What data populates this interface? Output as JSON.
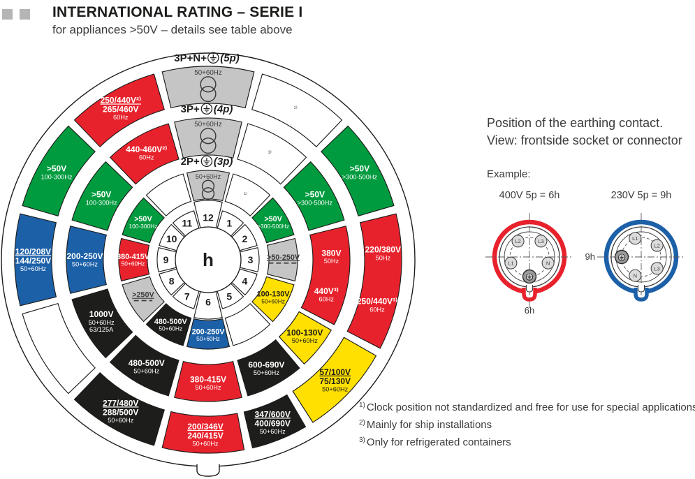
{
  "header": {
    "title": "INTERNATIONAL RATING – SERIE I",
    "subtitle": "for appliances >50V – details see table above"
  },
  "colors": {
    "red": "#E8222C",
    "green": "#009B3E",
    "blue": "#1C60A8",
    "black": "#1D1D1B",
    "gray": "#C5C5C5",
    "yellow": "#FFE000",
    "white": "#FFFFFF",
    "dark": "#1D1D1B",
    "text_gray": "#3C3C3B",
    "square_gray": "#B5B5B5"
  },
  "wheel": {
    "center_label": "h",
    "clock_numbers": [
      "1",
      "2",
      "3",
      "4",
      "5",
      "6",
      "7",
      "8",
      "9",
      "10",
      "11",
      "12"
    ],
    "rings": [
      {
        "id": "3p",
        "label_prefix": "2P+",
        "label_suffix": "(3p)",
        "segments": [
          {
            "s": 11.5,
            "e": 12.5,
            "c": "gray",
            "tr": true,
            "ls": [
              {
                "at": 12,
                "ln": [
                  {
                    "t": "50+60Hz",
                    "sm": true
                  }
                ]
              }
            ]
          },
          {
            "s": 12.5,
            "e": 13.5,
            "c": "white",
            "ls": [
              {
                "at": 13,
                "ln": [
                  {
                    "t": "¹⁾",
                    "sm": true
                  }
                ]
              }
            ]
          },
          {
            "s": 1.5,
            "e": 2.5,
            "c": "green",
            "ls": [
              {
                "at": 2,
                "ln": [
                  {
                    "t": ">50V"
                  },
                  {
                    "t": ">300-500Hz",
                    "sm": true
                  }
                ]
              }
            ]
          },
          {
            "s": 2.5,
            "e": 3.5,
            "c": "gray",
            "ls": [
              {
                "at": 3,
                "ln": [
                  {
                    "t": ">50-250V",
                    "u": true,
                    "dc": true
                  }
                ]
              }
            ]
          },
          {
            "s": 3.5,
            "e": 4.5,
            "c": "yellow",
            "ls": [
              {
                "at": 4,
                "ln": [
                  {
                    "t": "100-130V"
                  },
                  {
                    "t": "50+60Hz",
                    "sm": true
                  }
                ]
              }
            ]
          },
          {
            "s": 4.5,
            "e": 5.5,
            "c": "white"
          },
          {
            "s": 5.5,
            "e": 6.5,
            "c": "blue",
            "ls": [
              {
                "at": 6,
                "ln": [
                  {
                    "t": "200-250V"
                  },
                  {
                    "t": "50+60Hz",
                    "sm": true
                  }
                ]
              }
            ]
          },
          {
            "s": 6.5,
            "e": 7.5,
            "c": "black",
            "ls": [
              {
                "at": 7,
                "ln": [
                  {
                    "t": "480-500V"
                  },
                  {
                    "t": "50+60Hz",
                    "sm": true
                  }
                ]
              }
            ]
          },
          {
            "s": 7.5,
            "e": 8.5,
            "c": "gray",
            "ls": [
              {
                "at": 8,
                "ln": [
                  {
                    "t": ">250V",
                    "u": true,
                    "dc": true
                  }
                ]
              }
            ]
          },
          {
            "s": 8.5,
            "e": 9.5,
            "c": "red",
            "ls": [
              {
                "at": 9,
                "ln": [
                  {
                    "t": "380-415V"
                  },
                  {
                    "t": "50+60Hz",
                    "sm": true
                  }
                ]
              }
            ]
          },
          {
            "s": 9.5,
            "e": 10.5,
            "c": "green",
            "ls": [
              {
                "at": 10,
                "ln": [
                  {
                    "t": ">50V"
                  },
                  {
                    "t": "100-300Hz",
                    "sm": true
                  }
                ]
              }
            ]
          },
          {
            "s": 10.5,
            "e": 11.5,
            "c": "white"
          }
        ]
      },
      {
        "id": "4p",
        "label_prefix": "3P+",
        "label_suffix": "(4p)",
        "segments": [
          {
            "s": 11.5,
            "e": 12.5,
            "c": "gray",
            "tr": true,
            "ls": [
              {
                "at": 12,
                "ln": [
                  {
                    "t": "50+60Hz",
                    "sm": true
                  }
                ]
              }
            ]
          },
          {
            "s": 12.5,
            "e": 13.5,
            "c": "white",
            "ls": [
              {
                "at": 13,
                "ln": [
                  {
                    "t": "¹⁾",
                    "sm": true
                  }
                ]
              }
            ]
          },
          {
            "s": 1.5,
            "e": 2.5,
            "c": "green",
            "ls": [
              {
                "at": 2,
                "ln": [
                  {
                    "t": ">50V"
                  },
                  {
                    "t": ">300-500Hz",
                    "sm": true
                  }
                ]
              }
            ]
          },
          {
            "s": 2.5,
            "e": 3.95,
            "c": "red",
            "ls": [
              {
                "at": 2.95,
                "ln": [
                  {
                    "t": "380V"
                  },
                  {
                    "t": "50Hz",
                    "sm": true
                  }
                ]
              },
              {
                "at": 3.55,
                "ln": [
                  {
                    "t": "440V³⁾"
                  },
                  {
                    "t": "60Hz",
                    "sm": true
                  }
                ]
              }
            ]
          },
          {
            "s": 3.95,
            "e": 4.62,
            "c": "yellow",
            "ls": [
              {
                "at": 4.28,
                "ln": [
                  {
                    "t": "100-130V"
                  },
                  {
                    "t": "50+60Hz",
                    "sm": true
                  }
                ]
              }
            ]
          },
          {
            "s": 4.62,
            "e": 5.5,
            "c": "black",
            "ls": [
              {
                "at": 5.06,
                "ln": [
                  {
                    "t": "600-690V"
                  },
                  {
                    "t": "50+60Hz",
                    "sm": true
                  }
                ]
              }
            ]
          },
          {
            "s": 5.5,
            "e": 6.5,
            "c": "red",
            "ls": [
              {
                "at": 6,
                "ln": [
                  {
                    "t": "380-415V"
                  },
                  {
                    "t": "50+60Hz",
                    "sm": true
                  }
                ]
              }
            ]
          },
          {
            "s": 6.5,
            "e": 7.5,
            "c": "black",
            "ls": [
              {
                "at": 7,
                "ln": [
                  {
                    "t": "480-500V"
                  },
                  {
                    "t": "50+60Hz",
                    "sm": true
                  }
                ]
              }
            ]
          },
          {
            "s": 7.5,
            "e": 8.5,
            "c": "black",
            "ls": [
              {
                "at": 8,
                "ln": [
                  {
                    "t": "1000V"
                  },
                  {
                    "t": "50+60Hz",
                    "sm": true
                  },
                  {
                    "t": "63/125A",
                    "sm": true
                  }
                ]
              }
            ]
          },
          {
            "s": 8.5,
            "e": 9.5,
            "c": "blue",
            "ls": [
              {
                "at": 9,
                "ln": [
                  {
                    "t": "200-250V"
                  },
                  {
                    "t": "50+60Hz",
                    "sm": true
                  }
                ]
              }
            ]
          },
          {
            "s": 9.5,
            "e": 10.5,
            "c": "green",
            "ls": [
              {
                "at": 10,
                "ln": [
                  {
                    "t": ">50V"
                  },
                  {
                    "t": "100-300Hz",
                    "sm": true
                  }
                ]
              }
            ]
          },
          {
            "s": 10.5,
            "e": 11.5,
            "c": "red",
            "ls": [
              {
                "at": 11,
                "ln": [
                  {
                    "t": "440-460V²⁾"
                  },
                  {
                    "t": "60Hz",
                    "sm": true
                  }
                ]
              }
            ]
          }
        ]
      },
      {
        "id": "5p",
        "label_prefix": "3P+N+",
        "label_suffix": "(5p)",
        "segments": [
          {
            "s": 11.5,
            "e": 12.5,
            "c": "gray",
            "tr": true,
            "ls": [
              {
                "at": 12,
                "ln": [
                  {
                    "t": "50+60Hz",
                    "sm": true
                  }
                ]
              }
            ]
          },
          {
            "s": 12.5,
            "e": 13.5,
            "c": "white",
            "ls": [
              {
                "at": 13,
                "ln": [
                  {
                    "t": "¹⁾",
                    "sm": true
                  }
                ]
              }
            ]
          },
          {
            "s": 1.5,
            "e": 2.5,
            "c": "green",
            "ls": [
              {
                "at": 2,
                "ln": [
                  {
                    "t": ">50V"
                  },
                  {
                    "t": ">300-500Hz",
                    "sm": true
                  }
                ]
              }
            ]
          },
          {
            "s": 2.5,
            "e": 3.95,
            "c": "red",
            "ls": [
              {
                "at": 2.93,
                "ln": [
                  {
                    "t": "220/380V"
                  },
                  {
                    "t": "50Hz",
                    "sm": true
                  }
                ]
              },
              {
                "at": 3.5,
                "ln": [
                  {
                    "t": "250/440V³⁾"
                  },
                  {
                    "t": "60Hz",
                    "sm": true
                  }
                ]
              }
            ]
          },
          {
            "s": 3.95,
            "e": 4.95,
            "c": "yellow",
            "ls": [
              {
                "at": 4.45,
                "ln": [
                  {
                    "t": "57/100V",
                    "u": true
                  },
                  {
                    "t": "75/130V"
                  },
                  {
                    "t": "50+60Hz",
                    "sm": true
                  }
                ]
              }
            ]
          },
          {
            "s": 4.95,
            "e": 5.6,
            "c": "black",
            "ls": [
              {
                "at": 5.28,
                "ln": [
                  {
                    "t": "347/600V",
                    "u": true
                  },
                  {
                    "t": "400/690V"
                  },
                  {
                    "t": "50+60Hz",
                    "sm": true
                  }
                ]
              }
            ]
          },
          {
            "s": 5.6,
            "e": 6.5,
            "c": "red",
            "ls": [
              {
                "at": 6.03,
                "ln": [
                  {
                    "t": "200/346V",
                    "u": true
                  },
                  {
                    "t": "240/415V"
                  },
                  {
                    "t": "50+60Hz",
                    "sm": true
                  }
                ]
              }
            ]
          },
          {
            "s": 6.5,
            "e": 7.5,
            "c": "black",
            "ls": [
              {
                "at": 7,
                "ln": [
                  {
                    "t": "277/480V",
                    "u": true
                  },
                  {
                    "t": "288/500V"
                  },
                  {
                    "t": "50+60Hz",
                    "sm": true
                  }
                ]
              }
            ]
          },
          {
            "s": 7.5,
            "e": 8.5,
            "c": "white"
          },
          {
            "s": 8.5,
            "e": 9.5,
            "c": "blue",
            "ls": [
              {
                "at": 9,
                "ln": [
                  {
                    "t": "120/208V",
                    "u": true
                  },
                  {
                    "t": "144/250V"
                  },
                  {
                    "t": "50+60Hz",
                    "sm": true
                  }
                ]
              }
            ]
          },
          {
            "s": 9.5,
            "e": 10.5,
            "c": "green",
            "ls": [
              {
                "at": 10,
                "ln": [
                  {
                    "t": ">50V"
                  },
                  {
                    "t": "100-300Hz",
                    "sm": true
                  }
                ]
              }
            ]
          },
          {
            "s": 10.5,
            "e": 11.5,
            "c": "red",
            "ls": [
              {
                "at": 11,
                "ln": [
                  {
                    "t": "250/440V²⁾",
                    "u": true
                  },
                  {
                    "t": "265/460V"
                  },
                  {
                    "t": "60Hz",
                    "sm": true
                  }
                ]
              }
            ]
          }
        ]
      }
    ]
  },
  "side_panel": {
    "heading_line1": "Position of the earthing contact.",
    "heading_line2": "View: frontside socket or connector",
    "example_label": "Example:",
    "connectors": [
      {
        "title": "400V 5p = 6h",
        "color": "#E8222C",
        "position_label": "6h",
        "label_side": "bottom",
        "earth_at": 6,
        "pins": [
          {
            "label": "L1",
            "at": 8.4
          },
          {
            "label": "L2",
            "at": 10.8
          },
          {
            "label": "L3",
            "at": 1.2
          },
          {
            "label": "N",
            "at": 3.6
          }
        ]
      },
      {
        "title": "230V 5p = 9h",
        "color": "#1C60A8",
        "position_label": "9h",
        "label_side": "left",
        "earth_at": 9,
        "pins": [
          {
            "label": "L1",
            "at": 11.4
          },
          {
            "label": "L2",
            "at": 1.8
          },
          {
            "label": "L3",
            "at": 4.2
          },
          {
            "label": "N",
            "at": 6.6
          }
        ]
      }
    ]
  },
  "footnotes": [
    {
      "marker": "1)",
      "text": "Clock position not standardized and free for use for special applications"
    },
    {
      "marker": "2)",
      "text": "Mainly for ship installations"
    },
    {
      "marker": "3)",
      "text": "Only for refrigerated containers"
    }
  ]
}
